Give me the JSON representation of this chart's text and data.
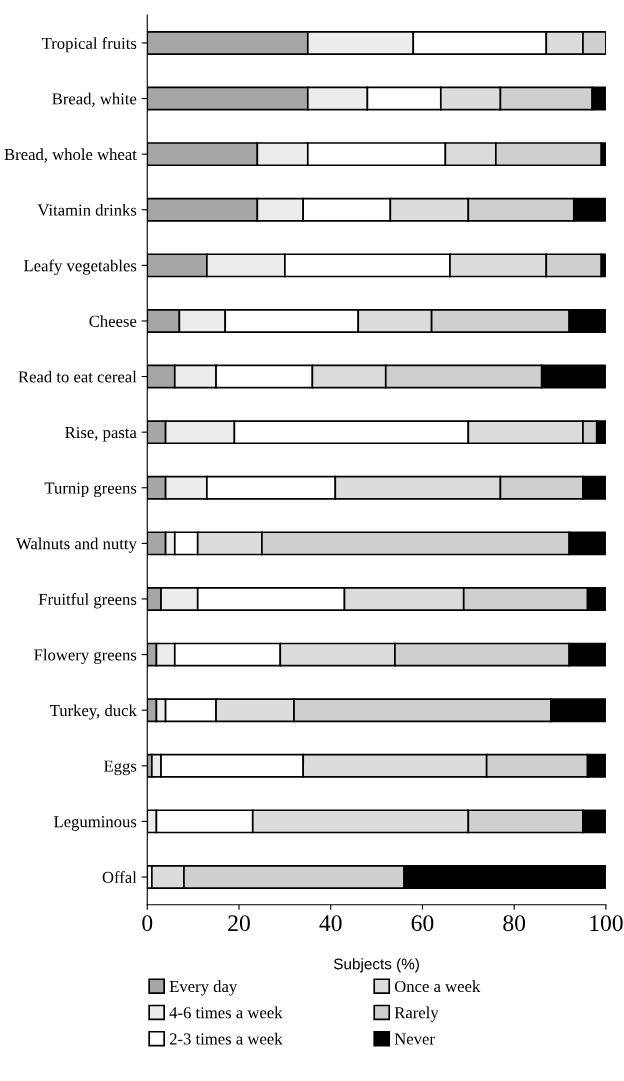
{
  "chart_data": {
    "type": "bar",
    "orientation": "horizontal",
    "stacked": true,
    "xlabel": "Subjects (%)",
    "categories": [
      "Tropical fruits",
      "Bread, white",
      "Bread, whole wheat",
      "Vitamin drinks",
      "Leafy vegetables",
      "Cheese",
      "Read to eat cereal",
      "Rise, pasta",
      "Turnip greens",
      "Walnuts and nutty",
      "Fruitful greens",
      "Flowery greens",
      "Turkey, duck",
      "Eggs",
      "Leguminous",
      "Offal"
    ],
    "series": [
      {
        "name": "Every day",
        "color": "#a6a6a6",
        "values": [
          35,
          35,
          24,
          24,
          13,
          7,
          6,
          4,
          4,
          4,
          3,
          2,
          2,
          1,
          0,
          0
        ]
      },
      {
        "name": "4-6 times a week",
        "color": "#ececec",
        "values": [
          23,
          13,
          11,
          10,
          17,
          10,
          9,
          15,
          9,
          2,
          8,
          4,
          2,
          2,
          2,
          0
        ]
      },
      {
        "name": "2-3 times a week",
        "color": "#ffffff",
        "values": [
          29,
          16,
          30,
          19,
          36,
          29,
          21,
          51,
          28,
          5,
          32,
          23,
          11,
          31,
          21,
          1
        ]
      },
      {
        "name": "Once a week",
        "color": "#dcdcdc",
        "values": [
          8,
          13,
          11,
          17,
          21,
          16,
          16,
          25,
          36,
          14,
          26,
          25,
          17,
          40,
          47,
          7
        ]
      },
      {
        "name": "Rarely",
        "color": "#cfcfcf",
        "values": [
          5,
          20,
          23,
          23,
          12,
          30,
          34,
          3,
          18,
          67,
          27,
          38,
          56,
          22,
          25,
          48
        ]
      },
      {
        "name": "Never",
        "color": "#000000",
        "values": [
          0,
          3,
          1,
          7,
          1,
          8,
          14,
          2,
          5,
          8,
          4,
          8,
          12,
          4,
          5,
          44
        ]
      }
    ],
    "xlim": [
      0,
      100
    ],
    "xticks": [
      0,
      20,
      40,
      60,
      80,
      100
    ],
    "grid": false,
    "legend": "bottom"
  }
}
